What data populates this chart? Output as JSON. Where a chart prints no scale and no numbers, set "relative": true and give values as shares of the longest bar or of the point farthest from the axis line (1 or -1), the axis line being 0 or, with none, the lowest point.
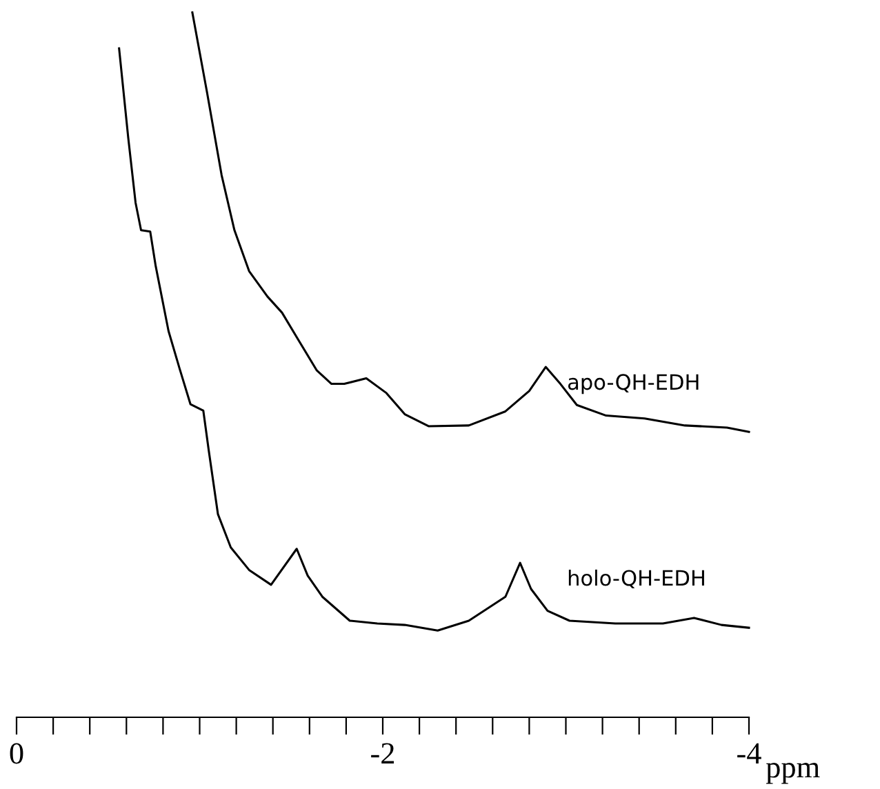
{
  "chart_data": {
    "type": "line",
    "relative": true,
    "xlabel": "ppm",
    "xlim": [
      0,
      -4
    ],
    "xticks": [
      0,
      {
        "value": -0.2,
        "label": null
      },
      {
        "value": -0.4,
        "label": null
      },
      {
        "value": -0.6,
        "label": null
      },
      {
        "value": -0.8,
        "label": null
      },
      {
        "value": -1.0,
        "label": null
      },
      {
        "value": -1.2,
        "label": null
      },
      {
        "value": -1.4,
        "label": null
      },
      {
        "value": -1.6,
        "label": null
      },
      {
        "value": -1.8,
        "label": null
      },
      -2,
      {
        "value": -2.2,
        "label": null
      },
      {
        "value": -2.4,
        "label": null
      },
      {
        "value": -2.6,
        "label": null
      },
      {
        "value": -2.8,
        "label": null
      },
      {
        "value": -3.0,
        "label": null
      },
      {
        "value": -3.2,
        "label": null
      },
      {
        "value": -3.4,
        "label": null
      },
      {
        "value": -3.6,
        "label": null
      },
      {
        "value": -3.8,
        "label": null
      },
      -4
    ],
    "tick_labels": "x",
    "grid": false,
    "legend": false,
    "marker": "none",
    "line_style": "solid",
    "series": [
      {
        "name": "apo-QH-EDH",
        "color": "#000000",
        "x": [
          -0.96,
          -1.04,
          -1.12,
          -1.19,
          -1.27,
          -1.37,
          -1.45,
          -1.54,
          -1.64,
          -1.72,
          -1.79,
          -1.91,
          -2.02,
          -2.12,
          -2.25,
          -2.47,
          -2.67,
          -2.8,
          -2.89,
          -2.97,
          -3.06,
          -3.22,
          -3.43,
          -3.65,
          -3.88,
          -4.0
        ],
        "values": [
          1,
          0.887,
          0.769,
          0.691,
          0.633,
          0.597,
          0.574,
          0.535,
          0.492,
          0.473,
          0.473,
          0.481,
          0.46,
          0.43,
          0.413,
          0.414,
          0.434,
          0.463,
          0.497,
          0.473,
          0.443,
          0.428,
          0.424,
          0.414,
          0.411,
          0.405
        ]
      },
      {
        "name": "holo-QH-EDH",
        "color": "#000000",
        "x": [
          -0.56,
          -0.61,
          -0.65,
          -0.68,
          -0.73,
          -0.76,
          -0.83,
          -0.89,
          -0.95,
          -1.02,
          -1.05,
          -1.1,
          -1.17,
          -1.27,
          -1.39,
          -1.53,
          -1.59,
          -1.67,
          -1.82,
          -1.97,
          -2.12,
          -2.3,
          -2.47,
          -2.67,
          -2.75,
          -2.81,
          -2.9,
          -3.02,
          -3.27,
          -3.53,
          -3.7,
          -3.85,
          -4.0
        ],
        "values": [
          0.949,
          0.822,
          0.73,
          0.691,
          0.689,
          0.64,
          0.548,
          0.495,
          0.444,
          0.435,
          0.378,
          0.288,
          0.241,
          0.209,
          0.188,
          0.239,
          0.201,
          0.171,
          0.137,
          0.133,
          0.131,
          0.123,
          0.137,
          0.171,
          0.219,
          0.182,
          0.151,
          0.137,
          0.133,
          0.133,
          0.141,
          0.131,
          0.127
        ]
      }
    ]
  }
}
